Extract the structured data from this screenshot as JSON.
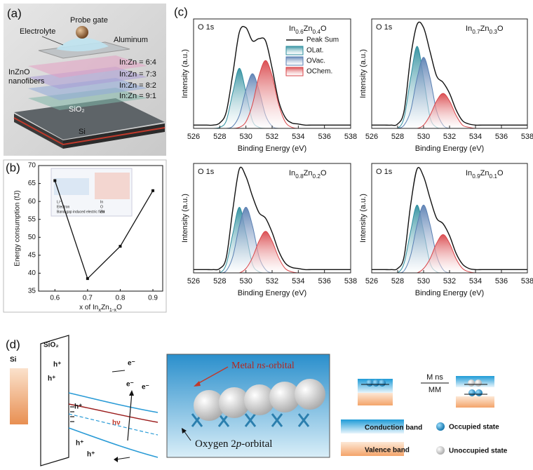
{
  "panel_labels": [
    "(a)",
    "(b)",
    "(c)",
    "(d)"
  ],
  "panel_a": {
    "electrolyte": "Electrolyte",
    "probe_gate": "Probe gate",
    "aluminum": "Aluminum",
    "ratios": [
      "In:Zn = 6:4",
      "In:Zn = 7:3",
      "In:Zn = 8:2",
      "In:Zn = 9:1"
    ],
    "nanofibers": [
      "InZnO",
      "nanofibers"
    ],
    "sio2": "SiO₂",
    "si": "Si"
  },
  "panel_d": {
    "si": "Si",
    "sio2": "SiO₂",
    "hole": "h⁺",
    "electron": "e⁻",
    "photon": "hν",
    "metal_parts": [
      "Metal ",
      "ns",
      "-orbital"
    ],
    "oxygen_parts": [
      "Oxygen 2",
      "p",
      "-orbital"
    ],
    "ratio_top": "M ns",
    "ratio_bottom": "MM",
    "legend": [
      "Conduction band",
      "Occupied state",
      "Valence band",
      "Unoccupied state"
    ]
  },
  "chart_data": [
    {
      "type": "line",
      "ylabel": "Energy consumption (fJ)",
      "xlabel_parts": [
        "x of In",
        "x",
        "Zn",
        "1-x",
        "O"
      ],
      "x": [
        0.6,
        0.7,
        0.8,
        0.9
      ],
      "values": [
        65.8,
        38.5,
        47.5,
        63
      ],
      "color": "#111111",
      "xlim": [
        0.55,
        0.93
      ],
      "xticks": [
        0.6,
        0.7,
        0.8,
        0.9
      ],
      "ylim": [
        35,
        70
      ],
      "yticks": [
        35,
        40,
        45,
        50,
        55,
        60,
        65,
        70
      ],
      "inset_texts": [
        "Li⁺",
        "Electron",
        "Band-gap induced electric field",
        "In",
        "O",
        "Zn"
      ]
    },
    {
      "type": "area",
      "title": "O 1s",
      "label_parts": [
        "In",
        "0.6",
        "Zn",
        "0.4",
        "O"
      ],
      "xlabel": "Binding Energy (eV)",
      "ylabel": "Intensity (a.u.)",
      "legend": true,
      "x": [
        526,
        526.5,
        527,
        527.5,
        528,
        528.5,
        529,
        529.5,
        530,
        530.5,
        531,
        531.5,
        532,
        532.5,
        533,
        533.5,
        534,
        534.5,
        535,
        535.5,
        536,
        536.5,
        537,
        537.5,
        538
      ],
      "xlim": [
        526,
        538
      ],
      "xticks": [
        526,
        528,
        530,
        532,
        534,
        536,
        538
      ],
      "ylim": [
        0,
        100
      ],
      "series": [
        {
          "name": "Peak Sum",
          "color": "#111111",
          "filled": false,
          "values": [
            3,
            3,
            3,
            3,
            5,
            15,
            50,
            88,
            92,
            80,
            82,
            80,
            55,
            25,
            10,
            5,
            4,
            3,
            3,
            3,
            3,
            3,
            3,
            3,
            3
          ]
        },
        {
          "name": "OLat.",
          "color": "#2f8f9f",
          "filled": true,
          "values": [
            0,
            0,
            0,
            0,
            1,
            7,
            33,
            55,
            33,
            7,
            1,
            0,
            0,
            0,
            0,
            0,
            0,
            0,
            0,
            0,
            0,
            0,
            0,
            0,
            0
          ]
        },
        {
          "name": "OVac.",
          "color": "#5b80b3",
          "filled": true,
          "values": [
            0,
            0,
            0,
            0,
            0,
            0,
            2,
            12,
            35,
            50,
            35,
            12,
            2,
            0,
            0,
            0,
            0,
            0,
            0,
            0,
            0,
            0,
            0,
            0,
            0
          ]
        },
        {
          "name": "OChem.",
          "color": "#d9464a",
          "filled": true,
          "values": [
            0,
            0,
            0,
            0,
            0,
            0,
            0,
            1,
            6,
            22,
            48,
            62,
            48,
            22,
            6,
            1,
            0,
            0,
            0,
            0,
            0,
            0,
            0,
            0,
            0
          ]
        }
      ]
    },
    {
      "type": "area",
      "title": "O 1s",
      "label_parts": [
        "In",
        "0.7",
        "Zn",
        "0.3",
        "O"
      ],
      "xlabel": "Binding Energy (eV)",
      "ylabel": "Intensity (a.u.)",
      "x": [
        526,
        526.5,
        527,
        527.5,
        528,
        528.5,
        529,
        529.5,
        530,
        530.5,
        531,
        531.5,
        532,
        532.5,
        533,
        533.5,
        534,
        534.5,
        535,
        535.5,
        536,
        536.5,
        537,
        537.5,
        538
      ],
      "xlim": [
        526,
        538
      ],
      "xticks": [
        526,
        528,
        530,
        532,
        534,
        536,
        538
      ],
      "ylim": [
        0,
        100
      ],
      "series": [
        {
          "color": "#111111",
          "filled": false,
          "values": [
            3,
            3,
            3,
            3,
            4,
            16,
            65,
            95,
            92,
            70,
            48,
            42,
            32,
            17,
            7,
            4,
            3,
            3,
            3,
            3,
            3,
            3,
            3,
            3,
            3
          ]
        },
        {
          "color": "#2f8f9f",
          "filled": true,
          "values": [
            0,
            0,
            0,
            0,
            0,
            10,
            46,
            75,
            46,
            10,
            1,
            0,
            0,
            0,
            0,
            0,
            0,
            0,
            0,
            0,
            0,
            0,
            0,
            0,
            0
          ]
        },
        {
          "color": "#5b80b3",
          "filled": true,
          "values": [
            0,
            0,
            0,
            0,
            0,
            3,
            16,
            46,
            65,
            46,
            16,
            3,
            0,
            0,
            0,
            0,
            0,
            0,
            0,
            0,
            0,
            0,
            0,
            0,
            0
          ]
        },
        {
          "color": "#d9464a",
          "filled": true,
          "values": [
            0,
            0,
            0,
            0,
            0,
            0,
            0,
            0,
            3,
            12,
            25,
            32,
            25,
            12,
            3,
            1,
            0,
            0,
            0,
            0,
            0,
            0,
            0,
            0,
            0
          ]
        }
      ]
    },
    {
      "type": "area",
      "title": "O 1s",
      "label_parts": [
        "In",
        "0.8",
        "Zn",
        "0.2",
        "O"
      ],
      "xlabel": "Binding Energy (eV)",
      "ylabel": "Intensity (a.u.)",
      "x": [
        526,
        526.5,
        527,
        527.5,
        528,
        528.5,
        529,
        529.5,
        530,
        530.5,
        531,
        531.5,
        532,
        532.5,
        533,
        533.5,
        534,
        534.5,
        535,
        535.5,
        536,
        536.5,
        537,
        537.5,
        538
      ],
      "xlim": [
        526,
        538
      ],
      "xticks": [
        526,
        528,
        530,
        532,
        534,
        536,
        538
      ],
      "ylim": [
        0,
        100
      ],
      "series": [
        {
          "color": "#111111",
          "filled": false,
          "values": [
            3,
            3,
            3,
            3,
            4,
            14,
            58,
            95,
            88,
            70,
            55,
            50,
            37,
            20,
            9,
            5,
            4,
            3,
            3,
            3,
            3,
            3,
            3,
            3,
            3
          ]
        },
        {
          "color": "#2f8f9f",
          "filled": true,
          "values": [
            0,
            0,
            0,
            0,
            0,
            8,
            36,
            60,
            36,
            8,
            1,
            0,
            0,
            0,
            0,
            0,
            0,
            0,
            0,
            0,
            0,
            0,
            0,
            0,
            0
          ]
        },
        {
          "color": "#5b80b3",
          "filled": true,
          "values": [
            0,
            0,
            0,
            0,
            0,
            2,
            15,
            43,
            60,
            43,
            15,
            3,
            0,
            0,
            0,
            0,
            0,
            0,
            0,
            0,
            0,
            0,
            0,
            0,
            0
          ]
        },
        {
          "color": "#d9464a",
          "filled": true,
          "values": [
            0,
            0,
            0,
            0,
            0,
            0,
            0,
            0,
            4,
            14,
            29,
            38,
            29,
            14,
            4,
            1,
            0,
            0,
            0,
            0,
            0,
            0,
            0,
            0,
            0
          ]
        }
      ]
    },
    {
      "type": "area",
      "title": "O 1s",
      "label_parts": [
        "In",
        "0.9",
        "Zn",
        "0.1",
        "O"
      ],
      "xlabel": "Binding Energy (eV)",
      "ylabel": "Intensity (a.u.)",
      "x": [
        526,
        526.5,
        527,
        527.5,
        528,
        528.5,
        529,
        529.5,
        530,
        530.5,
        531,
        531.5,
        532,
        532.5,
        533,
        533.5,
        534,
        534.5,
        535,
        535.5,
        536,
        536.5,
        537,
        537.5,
        538
      ],
      "xlim": [
        526,
        538
      ],
      "xticks": [
        526,
        528,
        530,
        532,
        534,
        536,
        538
      ],
      "ylim": [
        0,
        100
      ],
      "series": [
        {
          "color": "#111111",
          "filled": false,
          "values": [
            3,
            3,
            3,
            3,
            4,
            15,
            62,
            95,
            88,
            68,
            50,
            45,
            34,
            18,
            8,
            4,
            3,
            3,
            3,
            3,
            3,
            3,
            3,
            3,
            3
          ]
        },
        {
          "color": "#2f8f9f",
          "filled": true,
          "values": [
            0,
            0,
            0,
            0,
            0,
            9,
            38,
            62,
            38,
            9,
            1,
            0,
            0,
            0,
            0,
            0,
            0,
            0,
            0,
            0,
            0,
            0,
            0,
            0,
            0
          ]
        },
        {
          "color": "#5b80b3",
          "filled": true,
          "values": [
            0,
            0,
            0,
            0,
            0,
            2,
            16,
            44,
            62,
            44,
            16,
            3,
            0,
            0,
            0,
            0,
            0,
            0,
            0,
            0,
            0,
            0,
            0,
            0,
            0
          ]
        },
        {
          "color": "#d9464a",
          "filled": true,
          "values": [
            0,
            0,
            0,
            0,
            0,
            0,
            0,
            0,
            4,
            13,
            27,
            35,
            27,
            13,
            4,
            1,
            0,
            0,
            0,
            0,
            0,
            0,
            0,
            0,
            0
          ]
        }
      ]
    }
  ]
}
